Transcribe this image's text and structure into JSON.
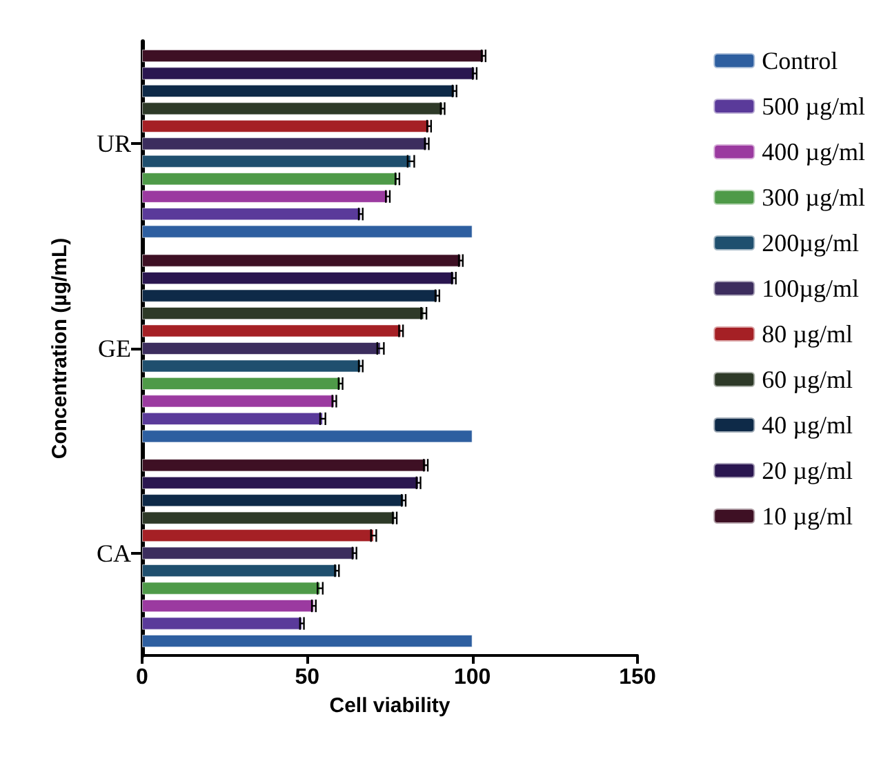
{
  "chart_data": {
    "type": "bar",
    "orientation": "horizontal",
    "xlabel": "Cell viability",
    "ylabel": "Concentration (µg/mL)",
    "categories": [
      "UR",
      "GE",
      "CA"
    ],
    "xlim": [
      0,
      150
    ],
    "xticks": [
      0,
      50,
      100,
      150
    ],
    "grid": false,
    "legend": "right",
    "series": [
      {
        "name": "Control",
        "color": "#2e5fa0",
        "values": [
          100,
          100,
          100
        ],
        "errors": [
          null,
          null,
          null
        ]
      },
      {
        "name": "500 µg/ml",
        "color": "#5a3a9a",
        "values": [
          66.2,
          54.7,
          48.4
        ],
        "errors": [
          0.6,
          0.8,
          0.6
        ]
      },
      {
        "name": "400 µg/ml",
        "color": "#9b3aa0",
        "values": [
          74.4,
          58.2,
          52
        ],
        "errors": [
          0.6,
          0.6,
          0.6
        ]
      },
      {
        "name": "300 µg/ml",
        "color": "#4e9a48",
        "values": [
          77.3,
          60.1,
          53.9
        ],
        "errors": [
          0.6,
          0.6,
          0.8
        ]
      },
      {
        "name": "200µg/ml",
        "color": "#1f4f6e",
        "values": [
          81.4,
          66.2,
          59
        ],
        "errors": [
          1,
          0.6,
          0.6
        ]
      },
      {
        "name": "100µg/ml",
        "color": "#3c2d5e",
        "values": [
          86.2,
          72.2,
          64.3
        ],
        "errors": [
          0.6,
          1,
          0.6
        ]
      },
      {
        "name": "80 µg/ml",
        "color": "#a52025",
        "values": [
          86.9,
          78.4,
          70.1
        ],
        "errors": [
          0.6,
          0.6,
          0.8
        ]
      },
      {
        "name": "60 µg/ml",
        "color": "#2e3a28",
        "values": [
          91,
          85.3,
          76.5
        ],
        "errors": [
          0.6,
          0.8,
          0.6
        ]
      },
      {
        "name": "40 µg/ml",
        "color": "#0e2a48",
        "values": [
          94.6,
          89.4,
          79.2
        ],
        "errors": [
          0.6,
          0.6,
          0.6
        ]
      },
      {
        "name": "20 µg/ml",
        "color": "#2a1650",
        "values": [
          100.7,
          94.4,
          83.7
        ],
        "errors": [
          0.6,
          0.6,
          0.6
        ]
      },
      {
        "name": "10 µg/ml",
        "color": "#3e1024",
        "values": [
          103.4,
          96.5,
          85.9
        ],
        "errors": [
          0.6,
          0.6,
          0.6
        ]
      }
    ]
  }
}
